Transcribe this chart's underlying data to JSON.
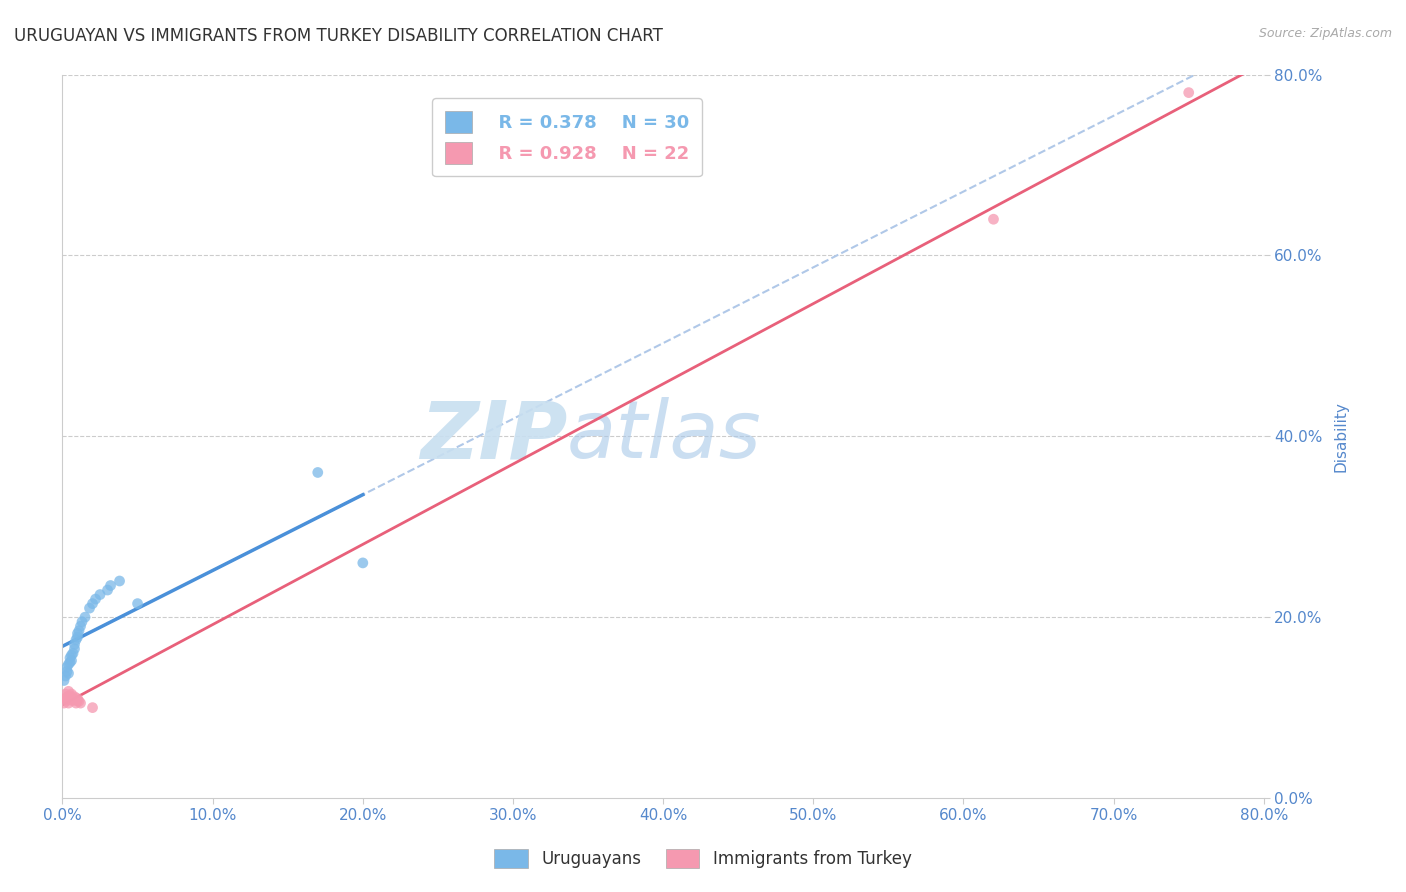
{
  "title": "URUGUAYAN VS IMMIGRANTS FROM TURKEY DISABILITY CORRELATION CHART",
  "source": "Source: ZipAtlas.com",
  "ylabel": "Disability",
  "watermark_zip": "ZIP",
  "watermark_atlas": "atlas",
  "legend_uruguayan": "Uruguayans",
  "legend_turkey": "Immigrants from Turkey",
  "r_uruguayan": "R = 0.378",
  "n_uruguayan": "N = 30",
  "r_turkey": "R = 0.928",
  "n_turkey": "N = 22",
  "xlim": [
    0.0,
    0.8
  ],
  "ylim": [
    0.0,
    0.8
  ],
  "xticks": [
    0.0,
    0.1,
    0.2,
    0.3,
    0.4,
    0.5,
    0.6,
    0.7,
    0.8
  ],
  "yticks": [
    0.0,
    0.2,
    0.4,
    0.6,
    0.8
  ],
  "uruguayan_scatter_x": [
    0.001,
    0.002,
    0.003,
    0.003,
    0.004,
    0.004,
    0.005,
    0.005,
    0.006,
    0.006,
    0.007,
    0.008,
    0.008,
    0.009,
    0.01,
    0.01,
    0.011,
    0.012,
    0.013,
    0.015,
    0.018,
    0.02,
    0.022,
    0.025,
    0.03,
    0.032,
    0.038,
    0.05,
    0.17,
    0.2
  ],
  "uruguayan_scatter_y": [
    0.13,
    0.135,
    0.14,
    0.145,
    0.138,
    0.148,
    0.15,
    0.155,
    0.152,
    0.158,
    0.16,
    0.165,
    0.17,
    0.175,
    0.178,
    0.182,
    0.185,
    0.19,
    0.195,
    0.2,
    0.21,
    0.215,
    0.22,
    0.225,
    0.23,
    0.235,
    0.24,
    0.215,
    0.36,
    0.26
  ],
  "turkey_scatter_x": [
    0.001,
    0.002,
    0.002,
    0.003,
    0.003,
    0.004,
    0.004,
    0.005,
    0.005,
    0.006,
    0.006,
    0.007,
    0.008,
    0.008,
    0.009,
    0.01,
    0.01,
    0.011,
    0.012,
    0.02,
    0.62,
    0.75
  ],
  "turkey_scatter_y": [
    0.105,
    0.11,
    0.115,
    0.108,
    0.112,
    0.105,
    0.118,
    0.11,
    0.113,
    0.108,
    0.115,
    0.11,
    0.108,
    0.112,
    0.105,
    0.108,
    0.11,
    0.107,
    0.105,
    0.1,
    0.64,
    0.78
  ],
  "uruguayan_color": "#7ab8e8",
  "turkey_color": "#f599b0",
  "trendline_uruguayan_color": "#4a90d9",
  "trendline_turkey_color": "#e8607a",
  "trendline_dashed_color": "#b0c8e8",
  "grid_color": "#cccccc",
  "background_color": "#ffffff",
  "title_color": "#333333",
  "tick_color": "#5588cc",
  "watermark_zip_color": "#c8dff0",
  "watermark_atlas_color": "#a8c8e8"
}
